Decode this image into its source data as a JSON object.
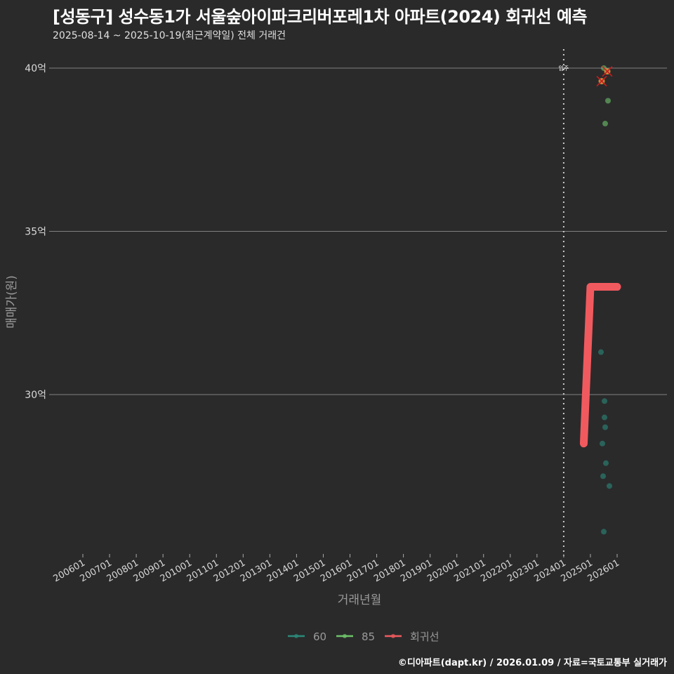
{
  "header": {
    "title": "[성동구] 성수동1가 서울숲아이파크리버포레1차 아파트(2024) 회귀선 예측",
    "subtitle": "2025-08-14 ~ 2025-10-19(최근계약일) 전체 거래건"
  },
  "caption": "©디아파트(dapt.kr) / 2026.01.09 / 자료=국토교통부 실거래가",
  "colors": {
    "background": "#2a2a2b",
    "series_60": "#2b8a7a",
    "series_85": "#6fc46a",
    "regression": "#f05a5e",
    "highlight": "#e39a3c",
    "cross": "#c81e1e",
    "grid": "#808080"
  },
  "chart_data": {
    "type": "scatter",
    "title": "[성동구] 성수동1가 서울숲아이파크리버포레1차 아파트(2024) 회귀선 예측",
    "subtitle": "2025-08-14 ~ 2025-10-19(최근계약일) 전체 거래건",
    "xlabel": "거래년월",
    "ylabel": "매매가(원)",
    "x_ticks": [
      "200601",
      "200701",
      "200801",
      "200901",
      "201001",
      "201101",
      "201201",
      "201301",
      "201401",
      "201501",
      "201601",
      "201701",
      "201801",
      "201901",
      "202001",
      "202101",
      "202201",
      "202301",
      "202401",
      "202501",
      "202601"
    ],
    "y_ticks": [
      {
        "value": 30,
        "label": "30억"
      },
      {
        "value": 35,
        "label": "35억"
      },
      {
        "value": 40,
        "label": "40억"
      }
    ],
    "ylim": [
      24.6,
      40.6
    ],
    "grid": "horizontal",
    "legend_position": "bottom",
    "legend": [
      "60",
      "85",
      "회귀선"
    ],
    "annotation": {
      "label": "입주",
      "x": "202401",
      "style": "dotted vertical line"
    },
    "series": [
      {
        "name": "60",
        "points": [
          {
            "x": "2025.08",
            "y": 31.3
          },
          {
            "x": "2025.08",
            "y": 29.8
          },
          {
            "x": "2025.09",
            "y": 29.3
          },
          {
            "x": "2025.08",
            "y": 29.0
          },
          {
            "x": "2025.08",
            "y": 28.5
          },
          {
            "x": "2025.08",
            "y": 27.9
          },
          {
            "x": "2025.08",
            "y": 27.5
          },
          {
            "x": "2025.09",
            "y": 27.2
          },
          {
            "x": "2025.08",
            "y": 25.8
          }
        ]
      },
      {
        "name": "85",
        "points": [
          {
            "x": "2025.09",
            "y": 40.0
          },
          {
            "x": "2025.09",
            "y": 39.9,
            "highlighted": true
          },
          {
            "x": "2025.08",
            "y": 39.6,
            "highlighted": true
          },
          {
            "x": "2025.09",
            "y": 39.0
          },
          {
            "x": "2025.09",
            "y": 38.3
          }
        ]
      },
      {
        "name": "회귀선",
        "points": [
          {
            "x": "2024.10",
            "y": 28.5
          },
          {
            "x": "2025.01",
            "y": 33.3
          },
          {
            "x": "2026.01",
            "y": 33.3
          }
        ]
      }
    ]
  }
}
